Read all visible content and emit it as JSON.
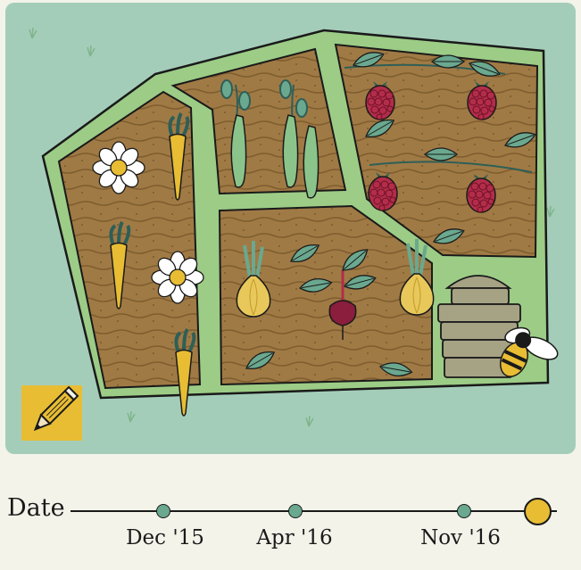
{
  "garden": {
    "plots": [
      {
        "name": "carrots-and-flowers",
        "crop": "carrot"
      },
      {
        "name": "peas",
        "crop": "pea pods"
      },
      {
        "name": "raspberries",
        "crop": "raspberry"
      },
      {
        "name": "onions-and-beets",
        "crop": "beetroot"
      }
    ],
    "decorations": [
      "beehive",
      "bee"
    ],
    "colors": {
      "background": "#a4cdb9",
      "path": "#9ccc86",
      "soil": "#a07a45",
      "accent": "#e8bd34"
    }
  },
  "toolbar": {
    "edit_icon": "pencil-icon"
  },
  "timeline": {
    "label": "Date",
    "dates": [
      {
        "label": "Dec '15",
        "current": false
      },
      {
        "label": "Apr '16",
        "current": false
      },
      {
        "label": "Nov '16",
        "current": false
      },
      {
        "label": "",
        "current": true
      }
    ]
  }
}
